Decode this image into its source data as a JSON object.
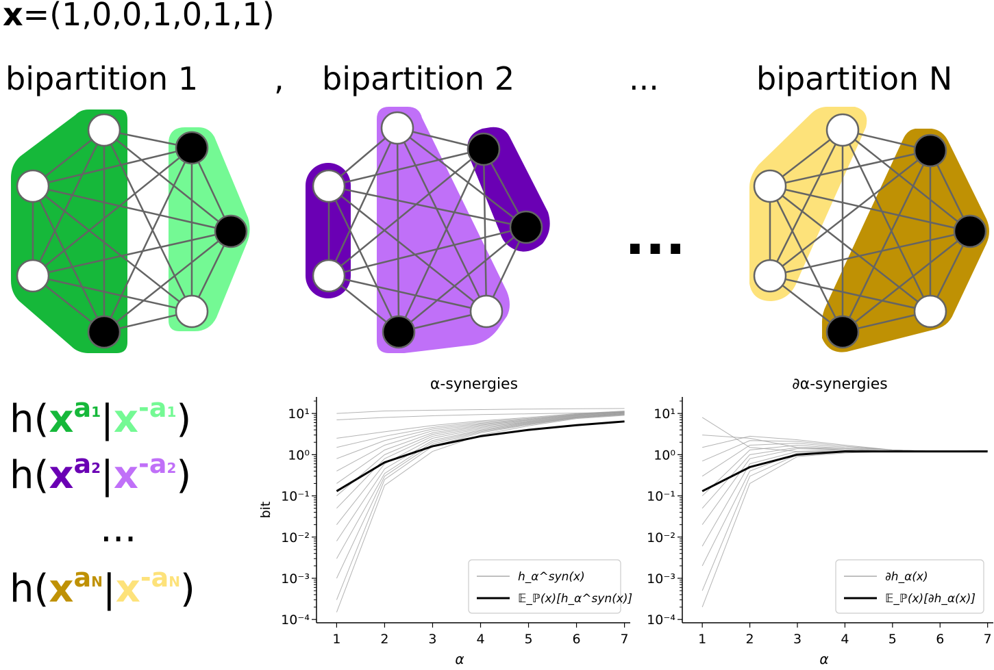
{
  "header": {
    "vector_label": "x",
    "vector_value": "=(1,0,0,1,0,1,1)",
    "bipartition_1": "bipartition 1",
    "separator": ",",
    "bipartition_2": "bipartition 2",
    "ellipsis_top": "...",
    "bipartition_n": "bipartition N",
    "ellipsis_middle": "..."
  },
  "colors": {
    "green_dark": "#16b83a",
    "green_light": "#74f994",
    "purple_dark": "#6a00b4",
    "purple_light": "#c070f8",
    "gold_dark": "#bf9104",
    "gold_light": "#fde27a",
    "edge": "#646464"
  },
  "formulas": {
    "rows": [
      {
        "h": "h(",
        "x1": "x",
        "sup1": "a",
        "sub1": "1",
        "bar": "|",
        "x2": "x",
        "sup2": "-a",
        "sub2": "1",
        "close": ")",
        "dark": "#16b83a",
        "light": "#74f994"
      },
      {
        "h": "h(",
        "x1": "x",
        "sup1": "a",
        "sub1": "2",
        "bar": "|",
        "x2": "x",
        "sup2": "-a",
        "sub2": "2",
        "close": ")",
        "dark": "#6a00b4",
        "light": "#c070f8"
      },
      {
        "h": "h(",
        "x1": "x",
        "sup1": "a",
        "sub1": "N",
        "bar": "|",
        "x2": "x",
        "sup2": "-a",
        "sub2": "N",
        "close": ")",
        "dark": "#bf9104",
        "light": "#fde27a"
      }
    ],
    "ellipsis": "..."
  },
  "chart_data": [
    {
      "type": "line",
      "title": "α-synergies",
      "xlabel": "α",
      "ylabel": "bit",
      "yscale": "log",
      "x": [
        1,
        2,
        3,
        4,
        5,
        6,
        7
      ],
      "xticks": [
        "1",
        "2",
        "3",
        "4",
        "5",
        "6",
        "7"
      ],
      "yticks": [
        "10⁻⁴",
        "10⁻³",
        "10⁻²",
        "10⁻¹",
        "10⁰",
        "10¹"
      ],
      "ylim": [
        0.0001,
        20
      ],
      "series": [
        {
          "name": "h_α^syn(x)",
          "role": "samples",
          "color": "#999999",
          "lines": [
            [
              0.00015,
              0.18,
              1.2,
              3.0,
              5.0,
              7.5,
              9.0
            ],
            [
              0.0003,
              0.25,
              1.6,
              3.4,
              5.3,
              7.8,
              9.3
            ],
            [
              0.001,
              0.3,
              1.8,
              3.6,
              5.5,
              7.9,
              9.5
            ],
            [
              0.003,
              0.35,
              2.0,
              3.8,
              5.7,
              8.0,
              9.7
            ],
            [
              0.008,
              0.45,
              2.2,
              4.0,
              5.9,
              8.2,
              9.8
            ],
            [
              0.02,
              0.6,
              2.5,
              4.3,
              6.1,
              8.4,
              10.0
            ],
            [
              0.05,
              0.8,
              2.8,
              4.6,
              6.3,
              8.6,
              10.2
            ],
            [
              0.1,
              1.0,
              3.1,
              4.9,
              6.5,
              8.8,
              10.4
            ],
            [
              0.2,
              1.3,
              3.4,
              5.2,
              6.8,
              9.0,
              10.6
            ],
            [
              0.4,
              1.7,
              3.8,
              5.5,
              7.0,
              9.2,
              10.8
            ],
            [
              0.8,
              2.2,
              4.2,
              5.8,
              7.3,
              9.4,
              11.0
            ],
            [
              1.5,
              2.8,
              4.6,
              6.2,
              7.6,
              9.6,
              11.2
            ],
            [
              2.5,
              3.6,
              5.1,
              6.6,
              8.0,
              9.9,
              11.5
            ],
            [
              7.0,
              8.0,
              8.8,
              9.4,
              9.8,
              10.2,
              10.6
            ],
            [
              10.0,
              11.5,
              12.0,
              12.4,
              12.8,
              13.0,
              13.2
            ]
          ]
        },
        {
          "name": "𝔼_ℙ(x)[h_α^syn(x)]",
          "role": "mean",
          "color": "#000000",
          "values": [
            0.13,
            0.65,
            1.6,
            2.8,
            4.0,
            5.2,
            6.4
          ]
        }
      ],
      "legend": "lower-right"
    },
    {
      "type": "line",
      "title": "∂α-synergies",
      "xlabel": "α",
      "ylabel": "",
      "yscale": "log",
      "x": [
        1,
        2,
        3,
        4,
        5,
        6,
        7
      ],
      "xticks": [
        "1",
        "2",
        "3",
        "4",
        "5",
        "6",
        "7"
      ],
      "yticks": [
        "10⁻⁴",
        "10⁻³",
        "10⁻²",
        "10⁻¹",
        "10⁰",
        "10¹"
      ],
      "ylim": [
        0.0001,
        20
      ],
      "series": [
        {
          "name": "∂h_α(x)",
          "role": "samples",
          "color": "#999999",
          "lines": [
            [
              0.0002,
              0.2,
              0.9,
              1.1,
              1.2,
              1.2,
              1.25
            ],
            [
              0.0005,
              0.3,
              1.0,
              1.2,
              1.2,
              1.2,
              1.25
            ],
            [
              0.002,
              0.4,
              1.1,
              1.2,
              1.2,
              1.2,
              1.25
            ],
            [
              0.006,
              0.6,
              1.2,
              1.3,
              1.2,
              1.2,
              1.25
            ],
            [
              0.02,
              0.8,
              1.4,
              1.3,
              1.2,
              1.2,
              1.25
            ],
            [
              0.05,
              1.0,
              1.5,
              1.4,
              1.2,
              1.2,
              1.25
            ],
            [
              0.1,
              1.3,
              1.7,
              1.4,
              1.3,
              1.2,
              1.25
            ],
            [
              0.3,
              1.7,
              1.9,
              1.5,
              1.3,
              1.2,
              1.25
            ],
            [
              0.7,
              2.2,
              2.1,
              1.6,
              1.3,
              1.2,
              1.25
            ],
            [
              1.5,
              2.8,
              2.3,
              1.7,
              1.3,
              1.2,
              1.25
            ],
            [
              3.0,
              2.5,
              1.5,
              1.3,
              1.2,
              1.2,
              1.25
            ],
            [
              8.0,
              1.5,
              1.2,
              1.2,
              1.2,
              1.2,
              1.25
            ]
          ]
        },
        {
          "name": "𝔼_ℙ(x)[∂h_α(x)]",
          "role": "mean",
          "color": "#000000",
          "values": [
            0.13,
            0.5,
            1.0,
            1.2,
            1.2,
            1.2,
            1.2
          ]
        }
      ],
      "legend": "lower-right"
    }
  ]
}
